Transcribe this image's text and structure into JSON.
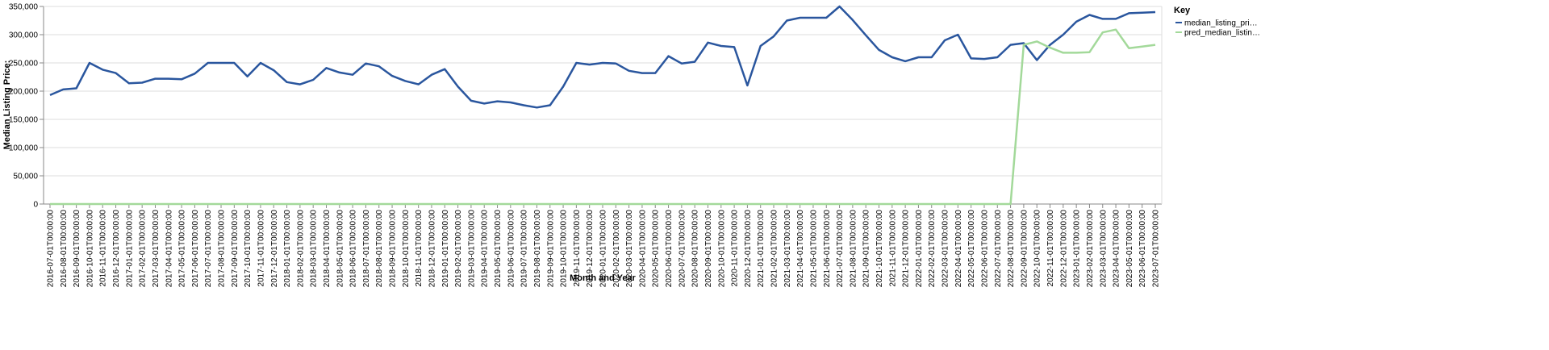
{
  "chart_data": {
    "type": "line",
    "x_label": "Month and Year",
    "y_label": "Median Listing Price:",
    "legend_title": "Key",
    "categories": [
      "2016-07-01T00:00:00",
      "2016-08-01T00:00:00",
      "2016-09-01T00:00:00",
      "2016-10-01T00:00:00",
      "2016-11-01T00:00:00",
      "2016-12-01T00:00:00",
      "2017-01-01T00:00:00",
      "2017-02-01T00:00:00",
      "2017-03-01T00:00:00",
      "2017-04-01T00:00:00",
      "2017-05-01T00:00:00",
      "2017-06-01T00:00:00",
      "2017-07-01T00:00:00",
      "2017-08-01T00:00:00",
      "2017-09-01T00:00:00",
      "2017-10-01T00:00:00",
      "2017-11-01T00:00:00",
      "2017-12-01T00:00:00",
      "2018-01-01T00:00:00",
      "2018-02-01T00:00:00",
      "2018-03-01T00:00:00",
      "2018-04-01T00:00:00",
      "2018-05-01T00:00:00",
      "2018-06-01T00:00:00",
      "2018-07-01T00:00:00",
      "2018-08-01T00:00:00",
      "2018-09-01T00:00:00",
      "2018-10-01T00:00:00",
      "2018-11-01T00:00:00",
      "2018-12-01T00:00:00",
      "2019-01-01T00:00:00",
      "2019-02-01T00:00:00",
      "2019-03-01T00:00:00",
      "2019-04-01T00:00:00",
      "2019-05-01T00:00:00",
      "2019-06-01T00:00:00",
      "2019-07-01T00:00:00",
      "2019-08-01T00:00:00",
      "2019-09-01T00:00:00",
      "2019-10-01T00:00:00",
      "2019-11-01T00:00:00",
      "2019-12-01T00:00:00",
      "2020-01-01T00:00:00",
      "2020-02-01T00:00:00",
      "2020-03-01T00:00:00",
      "2020-04-01T00:00:00",
      "2020-05-01T00:00:00",
      "2020-06-01T00:00:00",
      "2020-07-01T00:00:00",
      "2020-08-01T00:00:00",
      "2020-09-01T00:00:00",
      "2020-10-01T00:00:00",
      "2020-11-01T00:00:00",
      "2020-12-01T00:00:00",
      "2021-01-01T00:00:00",
      "2021-02-01T00:00:00",
      "2021-03-01T00:00:00",
      "2021-04-01T00:00:00",
      "2021-05-01T00:00:00",
      "2021-06-01T00:00:00",
      "2021-07-01T00:00:00",
      "2021-08-01T00:00:00",
      "2021-09-01T00:00:00",
      "2021-10-01T00:00:00",
      "2021-11-01T00:00:00",
      "2021-12-01T00:00:00",
      "2022-01-01T00:00:00",
      "2022-02-01T00:00:00",
      "2022-03-01T00:00:00",
      "2022-04-01T00:00:00",
      "2022-05-01T00:00:00",
      "2022-06-01T00:00:00",
      "2022-07-01T00:00:00",
      "2022-08-01T00:00:00",
      "2022-09-01T00:00:00",
      "2022-10-01T00:00:00",
      "2022-11-01T00:00:00",
      "2022-12-01T00:00:00",
      "2023-01-01T00:00:00",
      "2023-02-01T00:00:00",
      "2023-03-01T00:00:00",
      "2023-04-01T00:00:00",
      "2023-05-01T00:00:00",
      "2023-06-01T00:00:00",
      "2023-07-01T00:00:00"
    ],
    "series": [
      {
        "name": "median_listing_pri…",
        "color": "#2a569e",
        "values": [
          193000,
          203000,
          205000,
          250000,
          238000,
          232000,
          214000,
          215000,
          222000,
          222000,
          221000,
          231000,
          250000,
          250000,
          250000,
          226000,
          250000,
          237000,
          216000,
          212000,
          220000,
          241000,
          233000,
          229000,
          249000,
          244000,
          227000,
          218000,
          212000,
          229000,
          239000,
          208000,
          183000,
          178000,
          182000,
          180000,
          175000,
          171000,
          175000,
          208000,
          250000,
          247000,
          250000,
          249000,
          236000,
          232000,
          232000,
          262000,
          249000,
          252000,
          286000,
          280000,
          278000,
          210000,
          280000,
          297000,
          325000,
          330000,
          330000,
          330000,
          350000,
          326000,
          299000,
          273000,
          260000,
          253000,
          260000,
          260000,
          290000,
          300000,
          258000,
          257000,
          260000,
          282000,
          285000,
          255000,
          282000,
          300000,
          323000,
          335000,
          328000,
          328000,
          338000,
          339000,
          340000
        ]
      },
      {
        "name": "pred_median_listin…",
        "color": "#a3d99a",
        "values": [
          0,
          0,
          0,
          0,
          0,
          0,
          0,
          0,
          0,
          0,
          0,
          0,
          0,
          0,
          0,
          0,
          0,
          0,
          0,
          0,
          0,
          0,
          0,
          0,
          0,
          0,
          0,
          0,
          0,
          0,
          0,
          0,
          0,
          0,
          0,
          0,
          0,
          0,
          0,
          0,
          0,
          0,
          0,
          0,
          0,
          0,
          0,
          0,
          0,
          0,
          0,
          0,
          0,
          0,
          0,
          0,
          0,
          0,
          0,
          0,
          0,
          0,
          0,
          0,
          0,
          0,
          0,
          0,
          0,
          0,
          0,
          0,
          0,
          0,
          282000,
          288000,
          277000,
          268000,
          268000,
          269000,
          304000,
          309000,
          276000,
          279000,
          282000
        ]
      }
    ],
    "ylim": [
      0,
      350000
    ],
    "yticks": [
      {
        "value": 0,
        "label": "0"
      },
      {
        "value": 50000,
        "label": "50,000"
      },
      {
        "value": 100000,
        "label": "100,000"
      },
      {
        "value": 150000,
        "label": "150,000"
      },
      {
        "value": 200000,
        "label": "200,000"
      },
      {
        "value": 250000,
        "label": "250,000"
      },
      {
        "value": 300000,
        "label": "300,000"
      },
      {
        "value": 350000,
        "label": "350,000"
      }
    ],
    "grid": true
  }
}
